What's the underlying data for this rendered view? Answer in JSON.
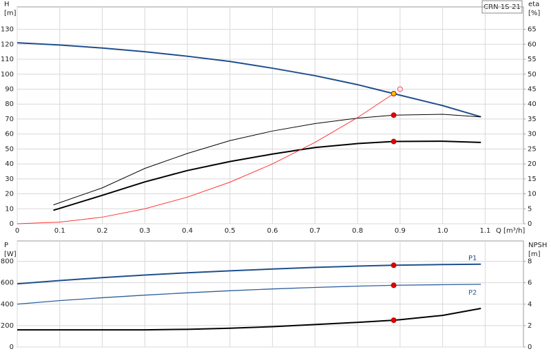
{
  "chart_data": [
    {
      "type": "line",
      "label": "CRN 1S-21",
      "ylabel": [
        "H",
        "[m]"
      ],
      "y2label": [
        "eta",
        "[%]"
      ],
      "xlabel": "Q [m³/h]",
      "xlim": [
        0,
        1.19
      ],
      "ylim": [
        0,
        145
      ],
      "y2lim": [
        0,
        72.5
      ],
      "xticks": [
        0,
        0.1,
        0.2,
        0.3,
        0.4,
        0.5,
        0.6,
        0.7,
        0.8,
        0.9,
        {
          "value": 1,
          "label": "1.0"
        },
        1.1
      ],
      "yticks": [
        0,
        10,
        20,
        30,
        40,
        50,
        60,
        70,
        80,
        90,
        100,
        110,
        120,
        130
      ],
      "y2ticks": [
        0,
        5,
        10,
        15,
        20,
        25,
        30,
        35,
        40,
        45,
        50,
        55,
        60,
        65
      ],
      "show_xtick_labels": true,
      "grid": true,
      "series": [
        {
          "color": "#1f4e8c",
          "width": 2,
          "x": [
            0,
            0.1,
            0.2,
            0.3,
            0.4,
            0.5,
            0.6,
            0.7,
            0.8,
            0.885,
            1.0,
            1.09
          ],
          "values": [
            121,
            119.5,
            117.5,
            115,
            112,
            108.5,
            104,
            99,
            93,
            87,
            79,
            71.5
          ]
        },
        {
          "color": "#000000",
          "width": 1,
          "axis": "y2",
          "x": [
            0.085,
            0.2,
            0.3,
            0.4,
            0.5,
            0.6,
            0.7,
            0.8,
            0.885,
            1.0,
            1.09
          ],
          "values": [
            6.3,
            12,
            18.5,
            23.5,
            27.8,
            31,
            33.5,
            35.3,
            36.3,
            36.6,
            35.7
          ]
        },
        {
          "color": "#000000",
          "width": 2,
          "axis": "y2",
          "x": [
            0.085,
            0.2,
            0.3,
            0.4,
            0.5,
            0.6,
            0.7,
            0.8,
            0.885,
            1.0,
            1.09
          ],
          "values": [
            4.5,
            9.5,
            14,
            17.8,
            20.8,
            23.3,
            25.5,
            26.8,
            27.5,
            27.6,
            27.2
          ]
        },
        {
          "color": "#ff3333",
          "width": 1,
          "x": [
            0,
            0.1,
            0.2,
            0.3,
            0.4,
            0.5,
            0.6,
            0.7,
            0.8,
            0.885
          ],
          "values": [
            0,
            1.1,
            4.4,
            10,
            17.8,
            27.8,
            40,
            54.4,
            71,
            87
          ]
        }
      ],
      "points": [
        {
          "x": 0.885,
          "y": 87,
          "color": "#f5c400",
          "hollow": false
        },
        {
          "x": 0.9,
          "y": 90,
          "color": "#ff4466",
          "hollow": true
        },
        {
          "x": 0.885,
          "y": 36.3,
          "axis": "y2",
          "color": "#e00000",
          "hollow": false
        },
        {
          "x": 0.885,
          "y": 27.5,
          "axis": "y2",
          "color": "#e00000",
          "hollow": false
        }
      ]
    },
    {
      "type": "line",
      "ylabel": [
        "P",
        "[W]"
      ],
      "y2label": [
        "NPSH",
        "[m]"
      ],
      "xlim": [
        0,
        1.19
      ],
      "ylim": [
        0,
        990
      ],
      "y2lim": [
        0,
        9.9
      ],
      "xticks": [
        0,
        0.1,
        0.2,
        0.3,
        0.4,
        0.5,
        0.6,
        0.7,
        0.8,
        0.9,
        1,
        1.1
      ],
      "yticks": [
        0,
        200,
        400,
        600,
        800
      ],
      "y2ticks": [
        0,
        2,
        4,
        6,
        8
      ],
      "show_xtick_labels": false,
      "grid": true,
      "series": [
        {
          "name": "P1",
          "color": "#1f4e8c",
          "width": 2,
          "x": [
            0,
            0.1,
            0.2,
            0.3,
            0.4,
            0.5,
            0.6,
            0.7,
            0.8,
            0.885,
            1.0,
            1.09
          ],
          "values": [
            590,
            620,
            648,
            672,
            693,
            711,
            728,
            743,
            755,
            763,
            770,
            773
          ]
        },
        {
          "name": "P2",
          "color": "#2e5e9e",
          "width": 1.3,
          "x": [
            0,
            0.1,
            0.2,
            0.3,
            0.4,
            0.5,
            0.6,
            0.7,
            0.8,
            0.885,
            1.0,
            1.09
          ],
          "values": [
            400,
            433,
            460,
            484,
            506,
            525,
            542,
            556,
            568,
            576,
            582,
            585
          ]
        },
        {
          "color": "#000000",
          "width": 2,
          "axis": "y2",
          "x": [
            0,
            0.3,
            0.4,
            0.5,
            0.6,
            0.7,
            0.8,
            0.885,
            0.9,
            1.0,
            1.09
          ],
          "values": [
            1.6,
            1.6,
            1.65,
            1.75,
            1.9,
            2.1,
            2.3,
            2.5,
            2.55,
            2.95,
            3.6
          ]
        }
      ],
      "points": [
        {
          "x": 0.885,
          "y": 763,
          "color": "#e00000",
          "hollow": false
        },
        {
          "x": 0.885,
          "y": 576,
          "color": "#e00000",
          "hollow": false
        },
        {
          "x": 0.885,
          "y": 2.5,
          "axis": "y2",
          "color": "#e00000",
          "hollow": false
        }
      ]
    }
  ]
}
